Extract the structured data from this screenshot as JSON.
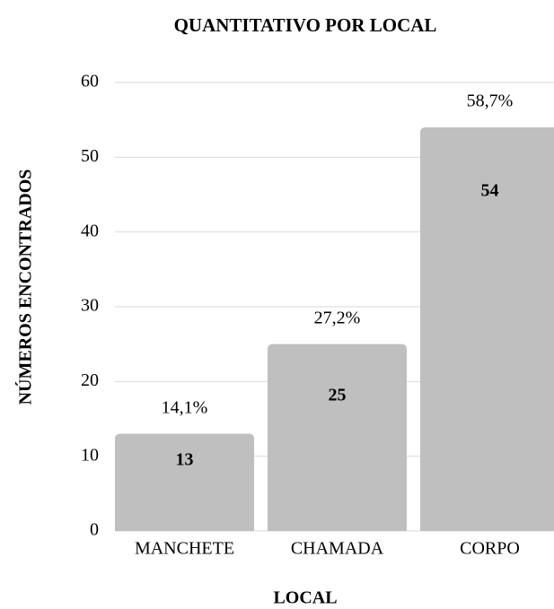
{
  "chart_data": {
    "type": "bar",
    "title": "QUANTITATIVO POR LOCAL",
    "xlabel": "LOCAL",
    "ylabel": "NÚMEROS ENCONTRADOS",
    "categories": [
      "MANCHETE",
      "CHAMADA",
      "CORPO"
    ],
    "values": [
      13,
      25,
      54
    ],
    "percent_labels": [
      "14,1%",
      "27,2%",
      "58,7%"
    ],
    "color": "#bfbfbf",
    "ylim": [
      0,
      60
    ],
    "yticks": [
      0,
      10,
      20,
      30,
      40,
      50,
      60
    ],
    "grid": true
  }
}
